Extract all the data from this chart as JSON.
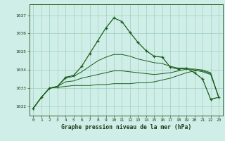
{
  "title": "Graphe pression niveau de la mer (hPa)",
  "background_color": "#d0eee8",
  "plot_bg": "#d0eee8",
  "grid_color": "#9ecfbf",
  "line_color": "#1a5e1a",
  "line_color_thin": "#2a7a2a",
  "xlim": [
    -0.5,
    23.5
  ],
  "ylim": [
    1031.5,
    1037.6
  ],
  "yticks": [
    1032,
    1033,
    1034,
    1035,
    1036,
    1037
  ],
  "xticks": [
    0,
    1,
    2,
    3,
    4,
    5,
    6,
    7,
    8,
    9,
    10,
    11,
    12,
    13,
    14,
    15,
    16,
    17,
    18,
    19,
    20,
    21,
    22,
    23
  ],
  "series": {
    "main": [
      1031.9,
      1032.5,
      1033.0,
      1033.1,
      1033.6,
      1033.7,
      1034.2,
      1034.9,
      1035.6,
      1036.3,
      1036.85,
      1036.65,
      1036.05,
      1035.5,
      1035.05,
      1034.75,
      1034.7,
      1034.15,
      1034.05,
      1034.1,
      1033.85,
      1033.5,
      1032.4,
      1032.5
    ],
    "band_top": [
      1031.9,
      1032.5,
      1033.0,
      1033.1,
      1033.55,
      1033.65,
      1033.9,
      1034.2,
      1034.5,
      1034.7,
      1034.85,
      1034.85,
      1034.75,
      1034.6,
      1034.5,
      1034.4,
      1034.35,
      1034.2,
      1034.1,
      1034.1,
      1034.0,
      1033.9,
      1033.75,
      1032.5
    ],
    "band_mid": [
      1031.9,
      1032.5,
      1033.0,
      1033.1,
      1033.35,
      1033.4,
      1033.55,
      1033.65,
      1033.75,
      1033.85,
      1033.95,
      1033.95,
      1033.9,
      1033.85,
      1033.8,
      1033.75,
      1033.8,
      1033.85,
      1033.95,
      1034.05,
      1034.05,
      1034.0,
      1033.85,
      1032.5
    ],
    "band_bot": [
      1031.9,
      1032.5,
      1033.0,
      1033.05,
      1033.1,
      1033.15,
      1033.15,
      1033.15,
      1033.2,
      1033.2,
      1033.25,
      1033.25,
      1033.25,
      1033.3,
      1033.3,
      1033.35,
      1033.45,
      1033.55,
      1033.7,
      1033.85,
      1033.95,
      1033.95,
      1033.8,
      1032.5
    ]
  }
}
